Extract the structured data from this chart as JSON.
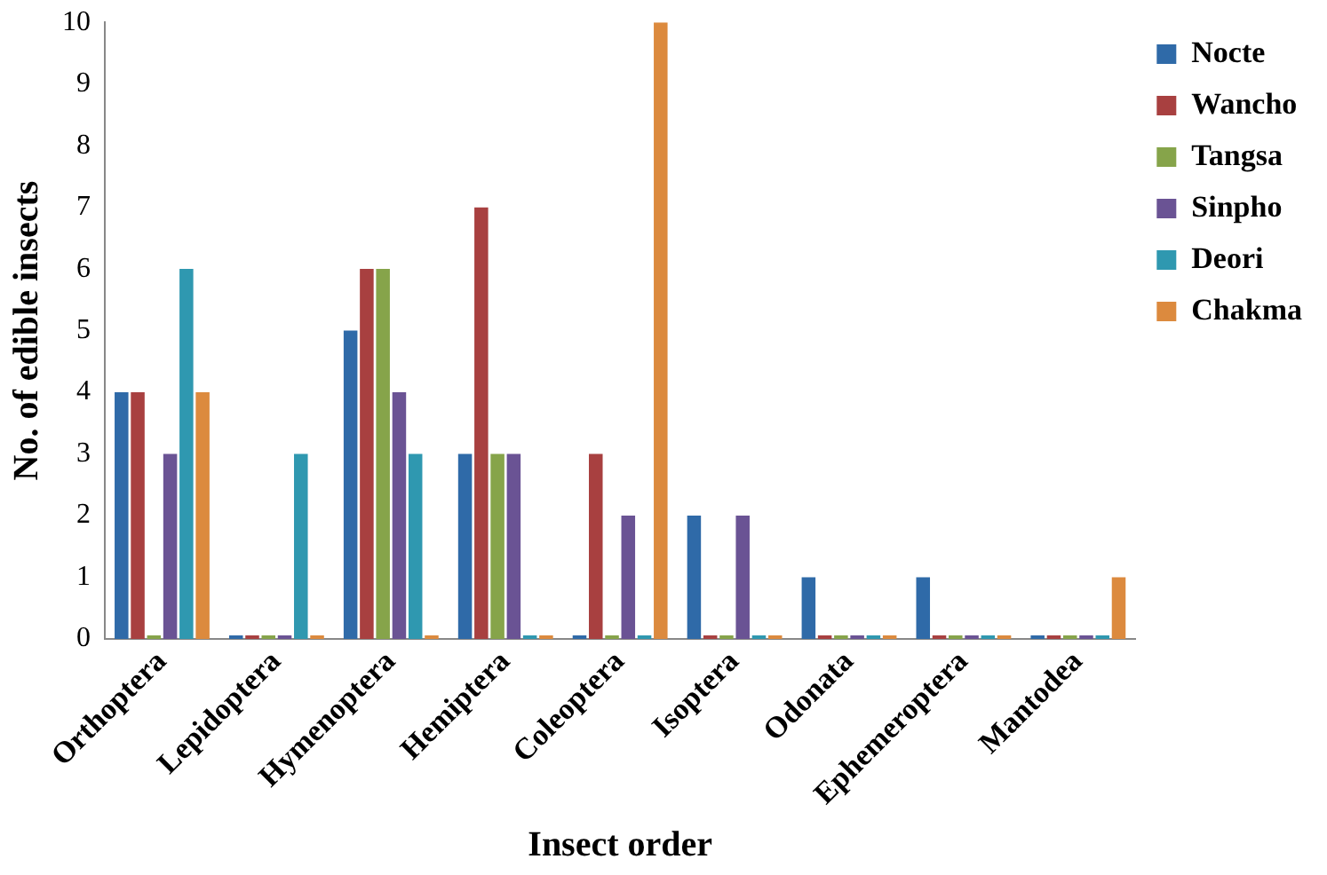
{
  "chart_data": {
    "type": "bar",
    "xlabel": "Insect order",
    "ylabel": "No. of edible insects",
    "categories": [
      "Orthoptera",
      "Lepidoptera",
      "Hymenoptera",
      "Hemiptera",
      "Coleoptera",
      "Isoptera",
      "Odonata",
      "Ephemeroptera",
      "Mantodea"
    ],
    "series": [
      {
        "name": "Nocte",
        "color": "#2f6aa8",
        "values": [
          4,
          0,
          5,
          3,
          0,
          2,
          1,
          1,
          0
        ]
      },
      {
        "name": "Wancho",
        "color": "#a84040",
        "values": [
          4,
          0,
          6,
          7,
          3,
          0,
          0,
          0,
          0
        ]
      },
      {
        "name": "Tangsa",
        "color": "#86a44a",
        "values": [
          0,
          0,
          6,
          3,
          0,
          0,
          0,
          0,
          0
        ]
      },
      {
        "name": "Sinpho",
        "color": "#6a5394",
        "values": [
          3,
          0,
          4,
          3,
          2,
          2,
          0,
          0,
          0
        ]
      },
      {
        "name": "Deori",
        "color": "#2f98b0",
        "values": [
          6,
          3,
          3,
          0,
          0,
          0,
          0,
          0,
          0
        ]
      },
      {
        "name": "Chakma",
        "color": "#dc8a3e",
        "values": [
          4,
          0,
          0,
          0,
          10,
          0,
          0,
          0,
          1
        ]
      }
    ],
    "ylim": [
      0,
      10
    ],
    "yticks": [
      0,
      1,
      2,
      3,
      4,
      5,
      6,
      7,
      8,
      9,
      10
    ],
    "grid": false,
    "legend": "top right"
  }
}
